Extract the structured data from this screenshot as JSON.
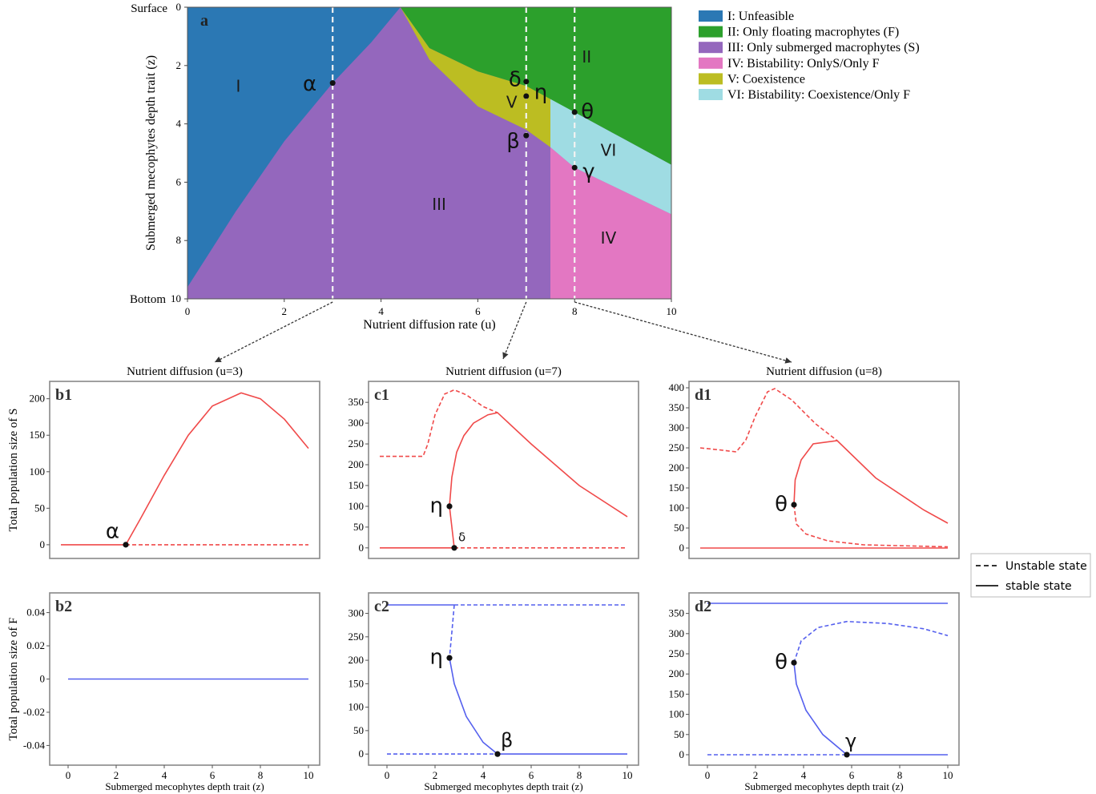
{
  "colors": {
    "I": "#2b78b4",
    "II": "#2ca02c",
    "III": "#9467bd",
    "IV": "#e377c2",
    "V": "#bcbd22",
    "VI": "#9fdce3",
    "red": "#f04a4a",
    "blue": "#5560ee"
  },
  "chart_data": [
    {
      "id": "a",
      "type": "area",
      "panel_label": "a",
      "xlabel": "Nutrient diffusion rate (u)",
      "ylabel": "Submerged mecophytes depth trait (z)",
      "xlim": [
        0,
        10
      ],
      "ylim": [
        10,
        0
      ],
      "xticks": [
        "0",
        "2",
        "4",
        "6",
        "8",
        "10"
      ],
      "yticks": [
        "0",
        "2",
        "4",
        "6",
        "8",
        "10"
      ],
      "y_top_label": "Surface",
      "y_bottom_label": "Bottom",
      "legend": {
        "placement": "right",
        "entries": [
          {
            "key": "I",
            "label": "I: Unfeasible"
          },
          {
            "key": "II",
            "label": "II: Only floating macrophytes (F)"
          },
          {
            "key": "III",
            "label": "III: Only submerged macrophytes (S)"
          },
          {
            "key": "IV",
            "label": "IV: Bistability: OnlyS/Only F"
          },
          {
            "key": "V",
            "label": "V: Coexistence"
          },
          {
            "key": "VI",
            "label": "VI: Bistability: Coexistence/Only F"
          }
        ]
      },
      "region_labels": [
        {
          "text": "I",
          "u": 1.05,
          "z": 2.75
        },
        {
          "text": "II",
          "u": 8.25,
          "z": 1.75
        },
        {
          "text": "III",
          "u": 5.2,
          "z": 6.8
        },
        {
          "text": "IV",
          "u": 8.7,
          "z": 7.95
        },
        {
          "text": "V",
          "u": 6.7,
          "z": 3.3
        },
        {
          "text": "VI",
          "u": 8.7,
          "z": 4.95
        }
      ],
      "points": [
        {
          "label": "α",
          "u": 3.0,
          "z": 2.6
        },
        {
          "label": "δ",
          "u": 7.0,
          "z": 2.55
        },
        {
          "label": "η",
          "u": 7.0,
          "z": 3.05
        },
        {
          "label": "β",
          "u": 7.0,
          "z": 4.4
        },
        {
          "label": "θ",
          "u": 8.0,
          "z": 3.6
        },
        {
          "label": "γ",
          "u": 8.0,
          "z": 5.5
        }
      ],
      "dashed_verticals": [
        3,
        7,
        8
      ],
      "boundaries": {
        "I_upper": [
          [
            0,
            9.6
          ],
          [
            1,
            7.0
          ],
          [
            2,
            4.6
          ],
          [
            3,
            2.6
          ],
          [
            3.8,
            1.2
          ],
          [
            4.4,
            0
          ]
        ],
        "II_lower": [
          [
            4.4,
            0
          ],
          [
            5,
            1.4
          ],
          [
            6,
            2.2
          ],
          [
            7,
            2.7
          ],
          [
            8,
            3.6
          ],
          [
            9,
            4.5
          ],
          [
            10,
            5.4
          ]
        ],
        "V_lower": [
          [
            4.4,
            0
          ],
          [
            5,
            1.8
          ],
          [
            6,
            3.4
          ],
          [
            7,
            4.2
          ],
          [
            7.5,
            4.8
          ]
        ],
        "VI_lower": [
          [
            7.5,
            4.8
          ],
          [
            8,
            5.5
          ],
          [
            9,
            6.3
          ],
          [
            10,
            7.1
          ]
        ],
        "IV_left_u": 7.5
      }
    },
    {
      "id": "b1",
      "type": "line",
      "panel_label": "b1",
      "title": "Nutrient diffusion (u=3)",
      "ylabel": "Total population size of S",
      "xlim": [
        -0.3,
        10
      ],
      "ylim": [
        -10,
        215
      ],
      "xticks": [],
      "yticks": [
        "0",
        "50",
        "100",
        "150",
        "200"
      ],
      "color": "red",
      "series": [
        {
          "style": "solid",
          "points": [
            [
              -0.3,
              0
            ],
            [
              2.4,
              0
            ]
          ]
        },
        {
          "style": "solid",
          "points": [
            [
              2.4,
              0
            ],
            [
              3,
              35
            ],
            [
              4,
              95
            ],
            [
              5,
              150
            ],
            [
              6,
              190
            ],
            [
              7.2,
              208
            ],
            [
              8,
              200
            ],
            [
              9,
              172
            ],
            [
              10,
              132
            ]
          ]
        },
        {
          "style": "dashed",
          "points": [
            [
              2.4,
              0
            ],
            [
              10,
              0
            ]
          ]
        }
      ],
      "markers": [
        {
          "label": "α",
          "x": 2.4,
          "y": 0
        }
      ]
    },
    {
      "id": "b2",
      "type": "line",
      "panel_label": "b2",
      "xlabel": "Submerged mecophytes depth trait (z)",
      "ylabel": "Total population size of F",
      "xlim": [
        -0.3,
        10
      ],
      "ylim": [
        -0.048,
        0.048
      ],
      "xticks": [
        "0",
        "2",
        "4",
        "6",
        "8",
        "10"
      ],
      "yticks": [
        "-0.04",
        "-0.02",
        "0",
        "0.02",
        "0.04"
      ],
      "color": "blue",
      "series": [
        {
          "style": "solid",
          "points": [
            [
              0,
              0
            ],
            [
              10,
              0
            ]
          ]
        }
      ],
      "markers": []
    },
    {
      "id": "c1",
      "type": "line",
      "panel_label": "c1",
      "title": "Nutrient diffusion (u=7)",
      "xlim": [
        -0.3,
        10
      ],
      "ylim": [
        -10,
        385
      ],
      "xticks": [],
      "yticks": [
        "0",
        "50",
        "100",
        "150",
        "200",
        "250",
        "300",
        "350"
      ],
      "color": "red",
      "series": [
        {
          "style": "dashed",
          "points": [
            [
              -0.3,
              220
            ],
            [
              1.5,
              220
            ],
            [
              1.7,
              250
            ],
            [
              2,
              320
            ],
            [
              2.4,
              370
            ],
            [
              2.8,
              380
            ],
            [
              3.3,
              368
            ],
            [
              4,
              340
            ],
            [
              4.6,
              325
            ]
          ]
        },
        {
          "style": "solid",
          "points": [
            [
              2.6,
              100
            ],
            [
              2.7,
              170
            ],
            [
              2.9,
              230
            ],
            [
              3.2,
              270
            ],
            [
              3.6,
              300
            ],
            [
              4.2,
              320
            ],
            [
              4.6,
              325
            ],
            [
              6,
              250
            ],
            [
              8,
              150
            ],
            [
              10,
              75
            ]
          ]
        },
        {
          "style": "solid",
          "points": [
            [
              2.6,
              100
            ],
            [
              2.8,
              0
            ]
          ]
        },
        {
          "style": "solid",
          "points": [
            [
              -0.3,
              0
            ],
            [
              2.8,
              0
            ]
          ]
        },
        {
          "style": "dashed",
          "points": [
            [
              2.8,
              0
            ],
            [
              10,
              0
            ]
          ]
        }
      ],
      "markers": [
        {
          "label": "η",
          "x": 2.6,
          "y": 100
        },
        {
          "label": "δ",
          "x": 2.8,
          "y": 0
        }
      ]
    },
    {
      "id": "c2",
      "type": "line",
      "panel_label": "c2",
      "xlabel": "Submerged mecophytes depth trait (z)",
      "xlim": [
        -0.3,
        10
      ],
      "ylim": [
        -10,
        330
      ],
      "xticks": [
        "0",
        "2",
        "4",
        "6",
        "8",
        "10"
      ],
      "yticks": [
        "0",
        "50",
        "100",
        "150",
        "200",
        "250",
        "300"
      ],
      "color": "blue",
      "series": [
        {
          "style": "solid",
          "points": [
            [
              0,
              318
            ],
            [
              2.8,
              318
            ]
          ]
        },
        {
          "style": "dashed",
          "points": [
            [
              2.8,
              318
            ],
            [
              10,
              318
            ]
          ]
        },
        {
          "style": "dashed",
          "points": [
            [
              2.8,
              318
            ],
            [
              2.7,
              260
            ],
            [
              2.6,
              205
            ]
          ]
        },
        {
          "style": "solid",
          "points": [
            [
              2.6,
              205
            ],
            [
              2.8,
              150
            ],
            [
              3.3,
              80
            ],
            [
              4,
              25
            ],
            [
              4.6,
              0
            ]
          ]
        },
        {
          "style": "dashed",
          "points": [
            [
              0,
              0
            ],
            [
              4.6,
              0
            ]
          ]
        },
        {
          "style": "solid",
          "points": [
            [
              4.6,
              0
            ],
            [
              10,
              0
            ]
          ]
        }
      ],
      "markers": [
        {
          "label": "η",
          "x": 2.6,
          "y": 205
        },
        {
          "label": "β",
          "x": 4.6,
          "y": 0
        }
      ]
    },
    {
      "id": "d1",
      "type": "line",
      "panel_label": "d1",
      "title": "Nutrient diffusion (u=8)",
      "xlim": [
        -0.3,
        10
      ],
      "ylim": [
        -10,
        400
      ],
      "xticks": [],
      "yticks": [
        "0",
        "50",
        "100",
        "150",
        "200",
        "250",
        "300",
        "350",
        "400"
      ],
      "color": "red",
      "series": [
        {
          "style": "dashed",
          "points": [
            [
              -0.3,
              250
            ],
            [
              0.5,
              245
            ],
            [
              1.2,
              240
            ],
            [
              1.6,
              270
            ],
            [
              2,
              330
            ],
            [
              2.5,
              390
            ],
            [
              2.8,
              398
            ],
            [
              3.5,
              370
            ],
            [
              4.5,
              310
            ],
            [
              5.4,
              268
            ]
          ]
        },
        {
          "style": "solid",
          "points": [
            [
              3.6,
              108
            ],
            [
              3.65,
              170
            ],
            [
              3.9,
              220
            ],
            [
              4.4,
              260
            ],
            [
              5.4,
              268
            ],
            [
              7,
              175
            ],
            [
              9,
              95
            ],
            [
              10,
              62
            ]
          ]
        },
        {
          "style": "dashed",
          "points": [
            [
              3.6,
              108
            ],
            [
              3.7,
              60
            ],
            [
              4.1,
              35
            ],
            [
              5,
              18
            ],
            [
              6.5,
              8
            ],
            [
              10,
              3
            ]
          ]
        },
        {
          "style": "solid",
          "points": [
            [
              -0.3,
              0
            ],
            [
              10,
              0
            ]
          ]
        }
      ],
      "markers": [
        {
          "label": "θ",
          "x": 3.6,
          "y": 108
        }
      ]
    },
    {
      "id": "d2",
      "type": "line",
      "panel_label": "d2",
      "xlabel": "Submerged mecophytes depth trait (z)",
      "xlim": [
        -0.3,
        10
      ],
      "ylim": [
        -10,
        385
      ],
      "xticks": [
        "0",
        "2",
        "4",
        "6",
        "8",
        "10"
      ],
      "yticks": [
        "0",
        "50",
        "100",
        "150",
        "200",
        "250",
        "300",
        "350"
      ],
      "color": "blue",
      "series": [
        {
          "style": "solid",
          "points": [
            [
              0,
              375
            ],
            [
              10,
              375
            ]
          ]
        },
        {
          "style": "dashed",
          "points": [
            [
              3.6,
              228
            ],
            [
              3.9,
              282
            ],
            [
              4.6,
              315
            ],
            [
              5.8,
              330
            ],
            [
              7.5,
              325
            ],
            [
              9,
              312
            ],
            [
              10,
              295
            ]
          ]
        },
        {
          "style": "solid",
          "points": [
            [
              3.6,
              228
            ],
            [
              3.7,
              175
            ],
            [
              4.1,
              110
            ],
            [
              4.8,
              50
            ],
            [
              5.8,
              0
            ]
          ]
        },
        {
          "style": "dashed",
          "points": [
            [
              0,
              0
            ],
            [
              5.8,
              0
            ]
          ]
        },
        {
          "style": "solid",
          "points": [
            [
              5.8,
              0
            ],
            [
              10,
              0
            ]
          ]
        }
      ],
      "markers": [
        {
          "label": "θ",
          "x": 3.6,
          "y": 228
        },
        {
          "label": "γ",
          "x": 5.8,
          "y": 0
        }
      ]
    }
  ],
  "line_legend": [
    {
      "style": "dashed",
      "label": "Unstable state"
    },
    {
      "style": "solid",
      "label": "stable state"
    }
  ]
}
